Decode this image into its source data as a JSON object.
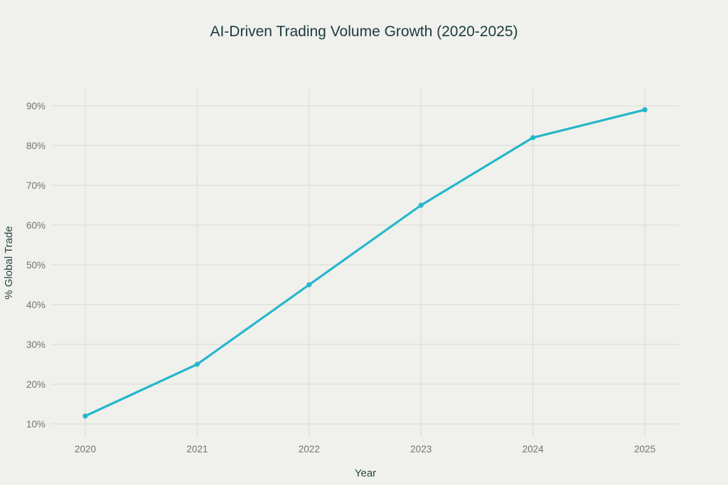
{
  "chart_data": {
    "type": "line",
    "title": "AI-Driven Trading Volume Growth (2020-2025)",
    "xlabel": "Year",
    "ylabel": "% Global Trade",
    "categories": [
      "2020",
      "2021",
      "2022",
      "2023",
      "2024",
      "2025"
    ],
    "series": [
      {
        "name": "% Global Trade",
        "values": [
          12,
          25,
          45,
          65,
          82,
          89
        ],
        "color": "#25b6cc"
      }
    ],
    "yticks": [
      10,
      20,
      30,
      40,
      50,
      60,
      70,
      80,
      90
    ],
    "ytick_labels": [
      "10%",
      "20%",
      "30%",
      "40%",
      "50%",
      "60%",
      "70%",
      "80%",
      "90%"
    ],
    "ylim": [
      10,
      90
    ],
    "grid": true,
    "legend": "none"
  }
}
